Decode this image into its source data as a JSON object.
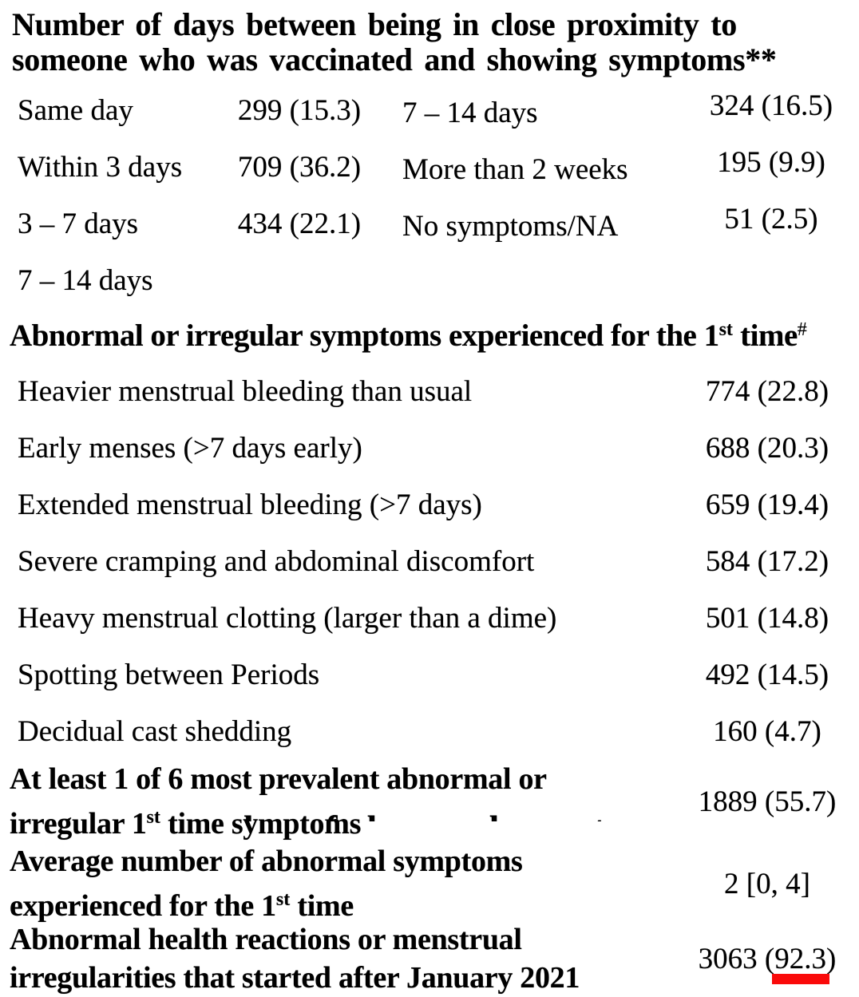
{
  "page": {
    "background": "#ffffff",
    "text_color": "#000000"
  },
  "colors": {
    "underline_red": "#fa0a0a"
  },
  "computed": {
    "red_bar_style": "background:#fa0a0a"
  },
  "proximity_section": {
    "title_line1": "Number of days between being in close proximity to",
    "title_line2": "someone who was vaccinated and showing symptoms**",
    "rows": [
      {
        "label_left": "Same day",
        "value_left": "299 (15.3)",
        "label_right": "7 – 14 days",
        "value_right": "324 (16.5)"
      },
      {
        "label_left": "Within 3 days",
        "value_left": "709 (36.2)",
        "label_right": "More than 2 weeks",
        "value_right": "195 (9.9)"
      },
      {
        "label_left": "3 – 7 days",
        "value_left": "434 (22.1)",
        "label_right": "No symptoms/NA",
        "value_right": "51 (2.5)"
      },
      {
        "label_left": "7 – 14 days",
        "value_left": "",
        "label_right": "",
        "value_right": ""
      }
    ]
  },
  "symptoms_section": {
    "header_pre": "Abnormal or irregular symptoms experienced for the 1",
    "header_sup1": "st",
    "header_mid": " time",
    "header_sup2": "#",
    "rows": [
      {
        "label": "Heavier menstrual bleeding than usual",
        "value": "774 (22.8)"
      },
      {
        "label": "Early menses (>7 days early)",
        "value": "688 (20.3)"
      },
      {
        "label": "Extended menstrual bleeding (>7 days)",
        "value": "659 (19.4)"
      },
      {
        "label": "Severe cramping and abdominal discomfort",
        "value": "584 (17.2)"
      },
      {
        "label": "Heavy menstrual clotting (larger than a dime)",
        "value": "501 (14.8)"
      },
      {
        "label": "Spotting between Periods",
        "value": "492 (14.5)"
      },
      {
        "label": "Decidual cast shedding",
        "value": "160 (4.7)"
      }
    ]
  },
  "summary_rows": [
    {
      "line1": "At least 1 of 6 most prevalent abnormal or",
      "line2_pre": "irregular 1",
      "line2_sup": "st",
      "line2_post": " time symptoms",
      "value": "1889 (55.7)"
    },
    {
      "line1": "Average number of abnormal symptoms",
      "line2_pre": "experienced for the 1",
      "line2_sup": "st",
      "line2_post": " time",
      "value": "2 [0, 4]"
    },
    {
      "line1": "Abnormal health reactions or menstrual",
      "line2_pre": "irregularities that started after January 2021",
      "line2_sup": "",
      "line2_post": "",
      "value_prefix": "3063 (",
      "value_underlined": "92.3",
      "value_suffix": ")"
    }
  ],
  "artifact": {
    "text": "number of abnormal symptoms"
  }
}
